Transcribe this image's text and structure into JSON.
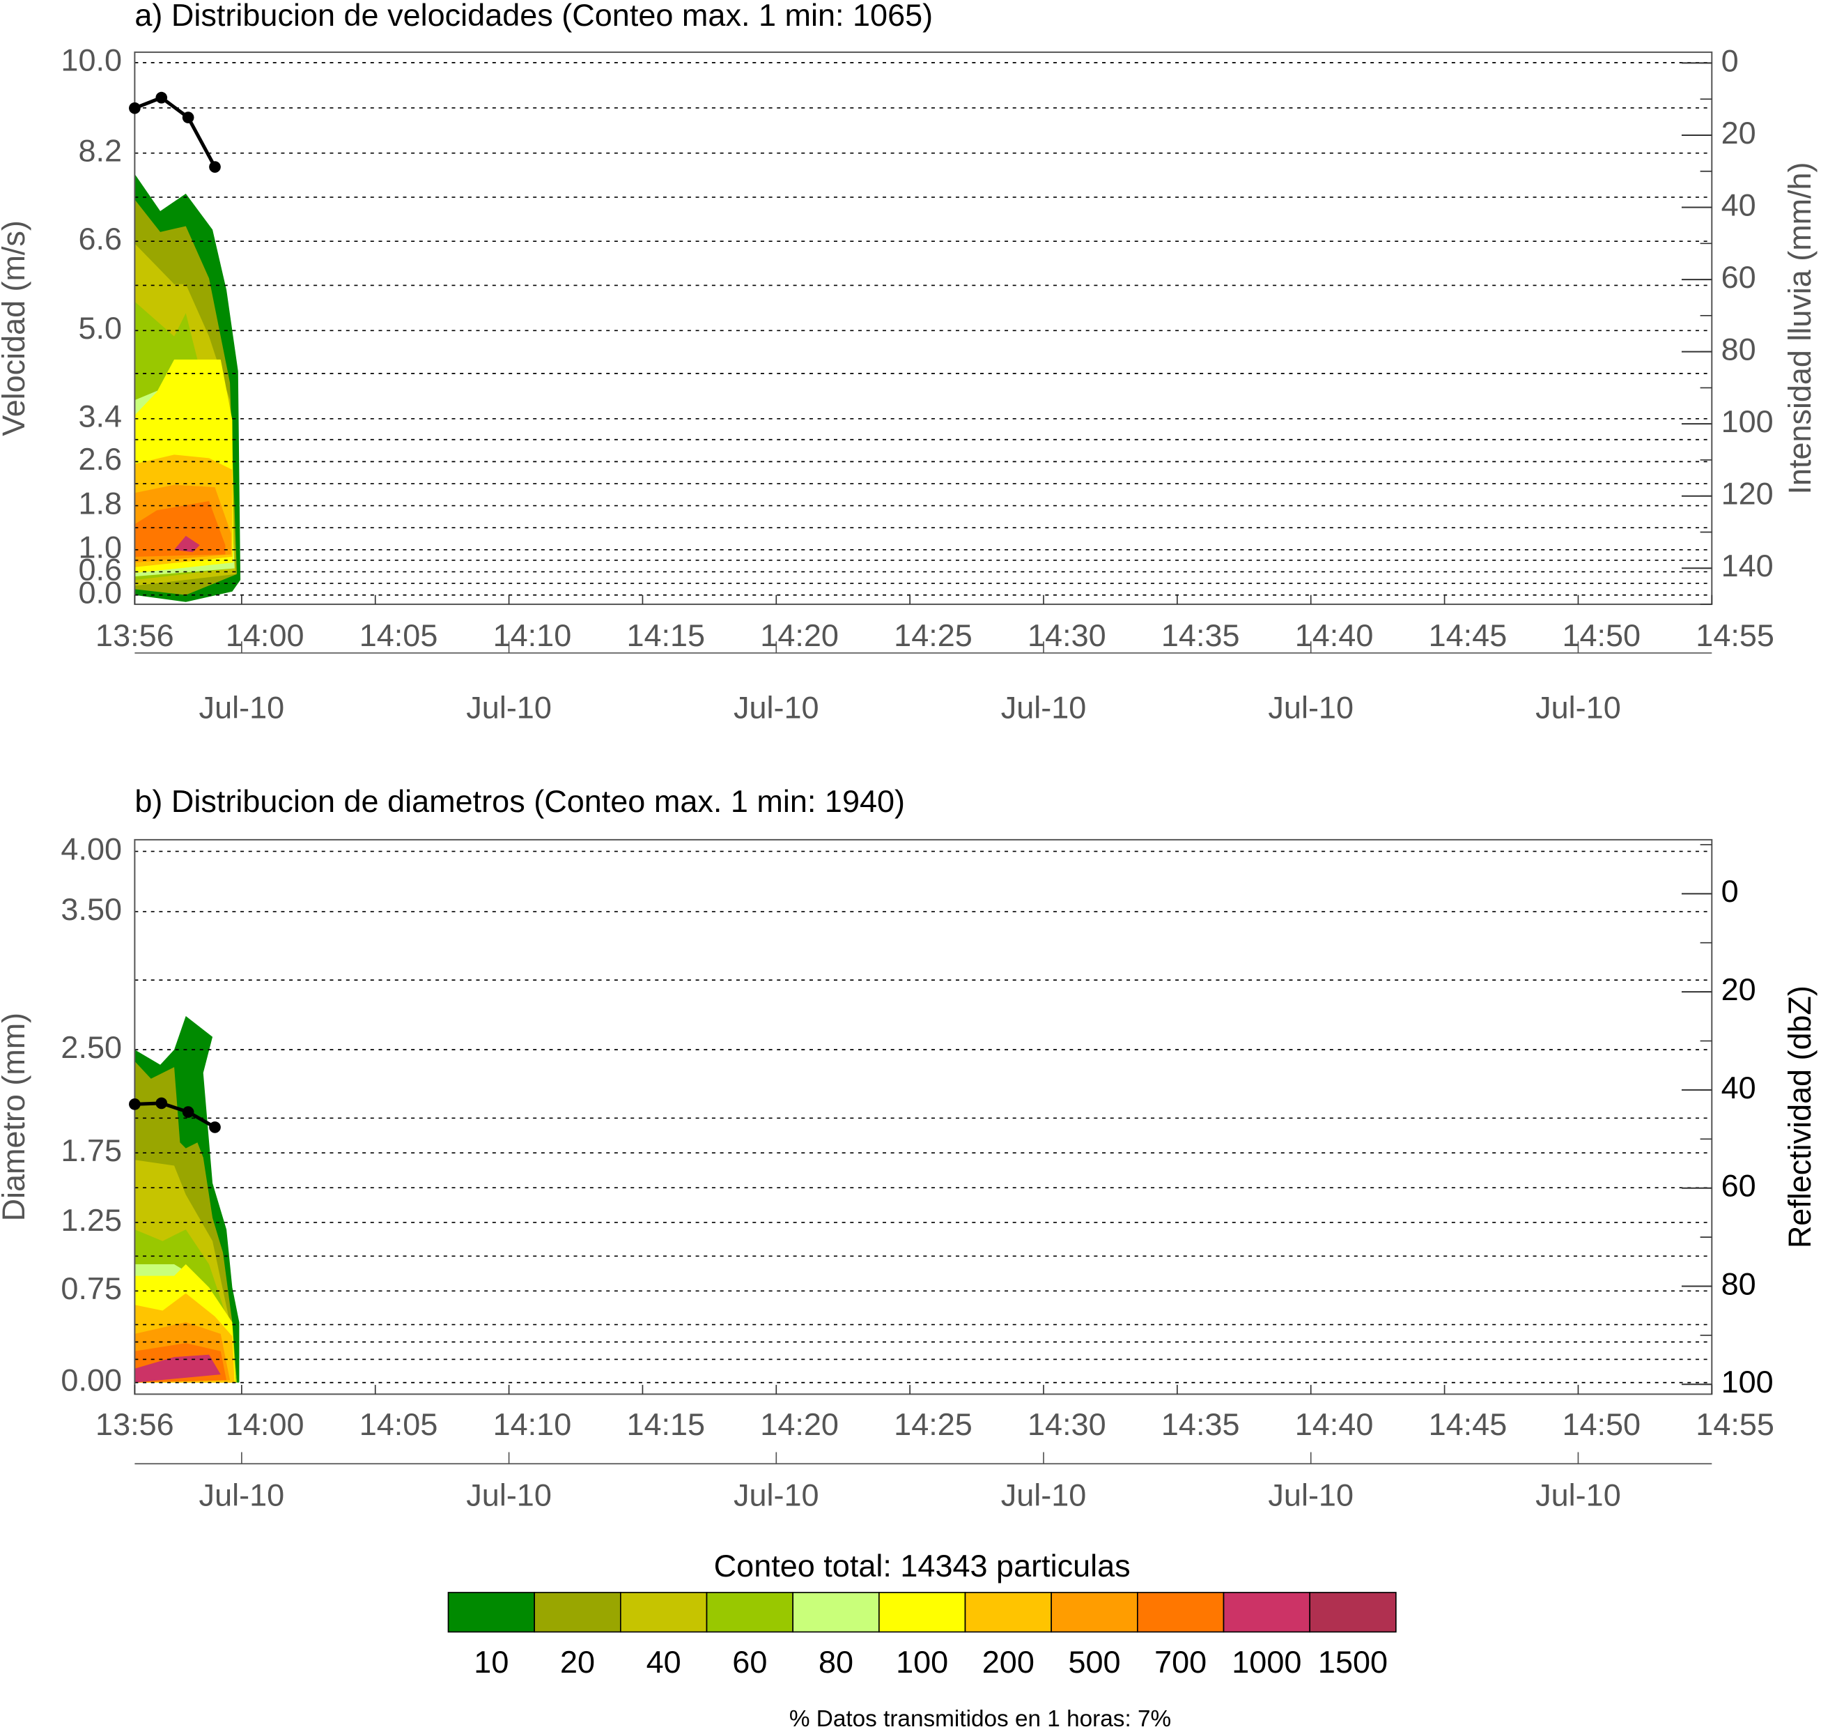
{
  "chart_data": [
    {
      "type": "contour",
      "title": "a) Distribucion de velocidades (Conteo max. 1 min: 1065)",
      "ylabel": "Velocidad (m/s)",
      "y2label": "Intensidad lluvia (mm/h)",
      "xlim": [
        "13:56",
        "14:55"
      ],
      "xticks": [
        "13:56",
        "14:00",
        "14:05",
        "14:10",
        "14:15",
        "14:20",
        "14:25",
        "14:30",
        "14:35",
        "14:40",
        "14:45",
        "14:50",
        "14:55"
      ],
      "xticks2": [
        {
          "value": "14:00",
          "label": "Jul-10"
        },
        {
          "value": "14:10",
          "label": "Jul-10"
        },
        {
          "value": "14:20",
          "label": "Jul-10"
        },
        {
          "value": "14:30",
          "label": "Jul-10"
        },
        {
          "value": "14:40",
          "label": "Jul-10"
        },
        {
          "value": "14:50",
          "label": "Jul-10"
        }
      ],
      "yticks": [
        {
          "value": 10,
          "label": "10.0"
        },
        8.2,
        6.6,
        {
          "value": 5,
          "label": "5.0"
        },
        3.4,
        2.6,
        1.8,
        {
          "value": 1,
          "label": "1.0"
        },
        0.6,
        {
          "value": 0,
          "label": "0.0"
        }
      ],
      "y2lim": [
        150,
        -3
      ],
      "y2ticks": [
        0,
        20,
        40,
        60,
        80,
        100,
        120,
        140
      ],
      "grid": true,
      "x": [
        "13:56",
        "13:57",
        "13:58",
        "13:59"
      ],
      "series": [
        {
          "color": "#000000",
          "axis": "y2",
          "values": [
            12.5,
            9.6,
            15.1,
            28.8
          ]
        }
      ]
    },
    {
      "type": "contour",
      "title": "b) Distribucion de diametros (Conteo max. 1 min: 1940)",
      "ylabel": "Diametro (mm)",
      "y2label": "Reflectividad (dbZ)",
      "xlim": [
        "13:56",
        "14:55"
      ],
      "xticks": [
        "13:56",
        "14:00",
        "14:05",
        "14:10",
        "14:15",
        "14:20",
        "14:25",
        "14:30",
        "14:35",
        "14:40",
        "14:45",
        "14:50",
        "14:55"
      ],
      "xticks2": [
        {
          "value": "14:00",
          "label": "Jul-10"
        },
        {
          "value": "14:10",
          "label": "Jul-10"
        },
        {
          "value": "14:20",
          "label": "Jul-10"
        },
        {
          "value": "14:30",
          "label": "Jul-10"
        },
        {
          "value": "14:40",
          "label": "Jul-10"
        },
        {
          "value": "14:50",
          "label": "Jul-10"
        }
      ],
      "yticks": [
        {
          "value": 4,
          "label": "4.00"
        },
        {
          "value": 3.5,
          "label": "3.50"
        },
        {
          "value": 2.5,
          "label": "2.50"
        },
        1.75,
        1.25,
        0.75,
        {
          "value": 0,
          "label": "0.00"
        }
      ],
      "y2lim": [
        102,
        -11
      ],
      "y2ticks": [
        0,
        20,
        40,
        60,
        80,
        100
      ],
      "grid": true,
      "x": [
        "13:56",
        "13:57",
        "13:58",
        "13:59"
      ],
      "series": [
        {
          "color": "#000000",
          "axis": "y2",
          "values": [
            42.9,
            42.7,
            44.5,
            47.6
          ]
        }
      ]
    }
  ],
  "colorbar": {
    "title": "Conteo total: 14343 particulas",
    "levels": [
      10,
      20,
      40,
      60,
      80,
      100,
      200,
      500,
      700,
      1000,
      1500
    ],
    "colors": [
      "#008a00",
      "#99a600",
      "#c6c400",
      "#99c800",
      "#c9ff7a",
      "#ffff00",
      "#ffc400",
      "#ff9d00",
      "#ff7700",
      "#cc3366",
      "#b03050"
    ]
  },
  "footer": "% Datos transmitidos en 1 horas: 7%"
}
